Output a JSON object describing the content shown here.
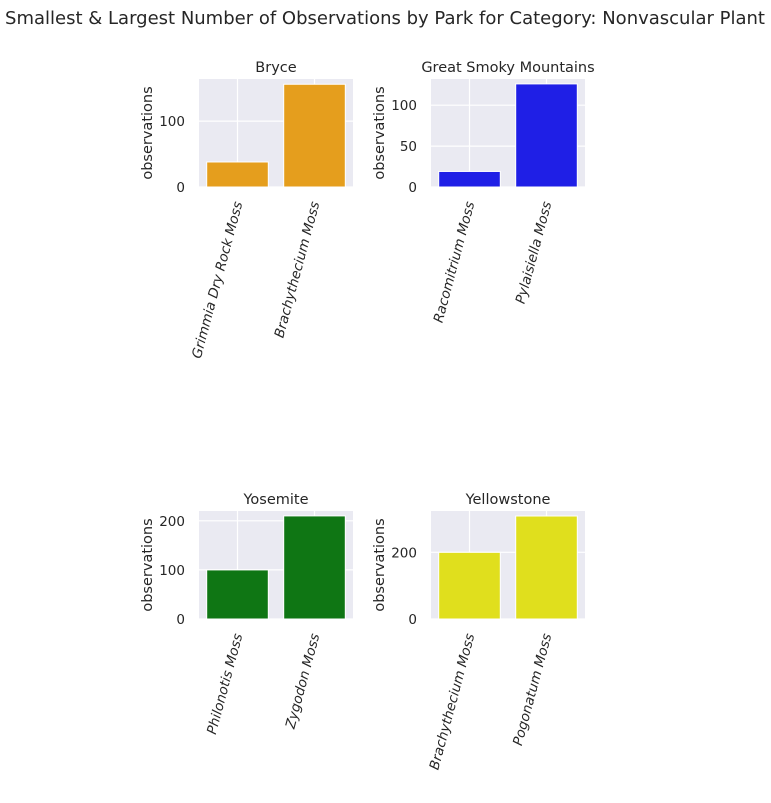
{
  "figure_title": "Smallest & Largest Number of Observations by Park for Category: Nonvascular Plant",
  "chart_data": [
    {
      "type": "bar",
      "title": "Bryce",
      "xlabel": "",
      "ylabel": "observations",
      "categories": [
        "Grimmia Dry Rock Moss",
        "Brachythecium Moss"
      ],
      "values": [
        38,
        156
      ],
      "color": "#e59e1d",
      "ylim": [
        0,
        164
      ],
      "yticks": [
        0,
        100
      ],
      "grid": true
    },
    {
      "type": "bar",
      "title": "Great Smoky Mountains",
      "xlabel": "",
      "ylabel": "observations",
      "categories": [
        "Racomitrium Moss",
        "Pylaisiella Moss"
      ],
      "values": [
        19,
        126
      ],
      "color": "#1f1fe6",
      "ylim": [
        0,
        132
      ],
      "yticks": [
        0,
        50,
        100
      ],
      "grid": true
    },
    {
      "type": "bar",
      "title": "Yosemite",
      "xlabel": "",
      "ylabel": "observations",
      "categories": [
        "Philonotis Moss",
        "Zygodon Moss"
      ],
      "values": [
        100,
        210
      ],
      "color": "#0f7614",
      "ylim": [
        0,
        220
      ],
      "yticks": [
        0,
        100,
        200
      ],
      "grid": true
    },
    {
      "type": "bar",
      "title": "Yellowstone",
      "xlabel": "",
      "ylabel": "observations",
      "categories": [
        "Brachythecium Moss",
        "Pogonatum Moss"
      ],
      "values": [
        200,
        309
      ],
      "color": "#e0df1d",
      "ylim": [
        0,
        324
      ],
      "yticks": [
        0,
        200
      ],
      "grid": true
    }
  ],
  "colors": {
    "axes_background": "#eaeaf2",
    "grid": "#ffffff",
    "text": "#262626"
  }
}
